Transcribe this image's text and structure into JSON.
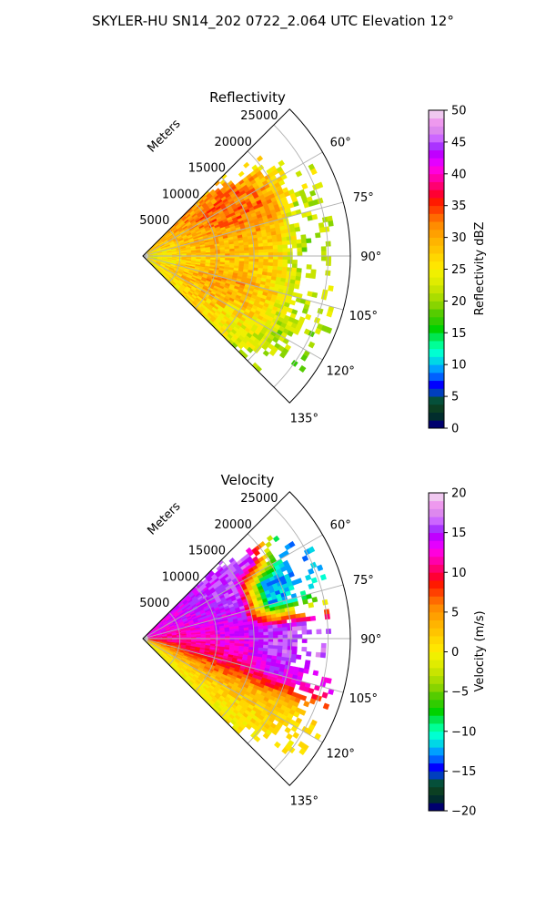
{
  "figure": {
    "suptitle": "SKYLER-HU  SN14_202  0722_2.064 UTC Elevation 12°"
  },
  "chart_data": [
    {
      "type": "heatmap",
      "projection": "polar-sector",
      "title": "Reflectivity",
      "range_label": "Meters",
      "range_ticks": [
        5000,
        10000,
        15000,
        20000,
        25000
      ],
      "range_tick_labels": [
        "5000",
        "10000",
        "15000",
        "20000",
        "25000"
      ],
      "rlim": [
        0,
        28000
      ],
      "theta_range_deg": [
        45,
        135
      ],
      "theta_ticks_deg": [
        60,
        75,
        90,
        105,
        120,
        135
      ],
      "theta_tick_labels": [
        "60°",
        "75°",
        "90°",
        "105°",
        "120°",
        "135°"
      ],
      "grid": true,
      "colorbar": {
        "label": "Reflectivity dBZ",
        "vmin": 0,
        "vmax": 50,
        "ticks": [
          0,
          5,
          10,
          15,
          20,
          25,
          30,
          35,
          40,
          45,
          50
        ],
        "tick_labels": [
          "0",
          "5",
          "10",
          "15",
          "20",
          "25",
          "30",
          "35",
          "40",
          "45",
          "50"
        ],
        "colors": [
          "#00006e",
          "#012d2d",
          "#0b3f22",
          "#05503a",
          "#003fbe",
          "#0000ff",
          "#0060ff",
          "#00a0ff",
          "#00d7e6",
          "#00ffd2",
          "#00ff96",
          "#00e650",
          "#00d200",
          "#30cc00",
          "#55cc00",
          "#88d400",
          "#aadd00",
          "#c8e400",
          "#e0ec00",
          "#f0f000",
          "#ffe600",
          "#ffd700",
          "#ffc400",
          "#ffb400",
          "#ffa000",
          "#ff8c00",
          "#ff6a00",
          "#ff4000",
          "#ff1a00",
          "#ff0033",
          "#ff0070",
          "#ff00aa",
          "#ff00dd",
          "#e400ff",
          "#c000ff",
          "#aa33ff",
          "#cc66ff",
          "#dd88ee",
          "#ee99ee",
          "#f0c8f0"
        ]
      },
      "field_profile": {
        "azimuth_deg": [
          45,
          55,
          65,
          75,
          85,
          95,
          105,
          115,
          125,
          135
        ],
        "range_m": [
          2000,
          6000,
          10000,
          14000,
          18000,
          22000
        ],
        "dbz": [
          [
            30,
            28,
            27,
            26,
            25,
            24,
            25,
            26,
            25,
            24
          ],
          [
            31,
            30,
            29,
            28,
            28,
            27,
            28,
            29,
            27,
            26
          ],
          [
            30,
            33,
            32,
            30,
            29,
            28,
            31,
            30,
            28,
            27
          ],
          [
            29,
            34,
            33,
            31,
            29,
            28,
            30,
            29,
            26,
            24
          ],
          [
            26,
            30,
            33,
            30,
            27,
            26,
            27,
            26,
            24,
            22
          ],
          [
            22,
            24,
            23,
            22,
            21,
            21,
            22,
            21,
            20,
            20
          ]
        ],
        "echo_edge_m_by_azimuth": [
          12000,
          20000,
          22000,
          21500,
          21000,
          21000,
          22000,
          23000,
          22000,
          17000
        ]
      }
    },
    {
      "type": "heatmap",
      "projection": "polar-sector",
      "title": "Velocity",
      "range_label": "Meters",
      "range_ticks": [
        5000,
        10000,
        15000,
        20000,
        25000
      ],
      "range_tick_labels": [
        "5000",
        "10000",
        "15000",
        "20000",
        "25000"
      ],
      "rlim": [
        0,
        28000
      ],
      "theta_range_deg": [
        45,
        135
      ],
      "theta_ticks_deg": [
        60,
        75,
        90,
        105,
        120,
        135
      ],
      "theta_tick_labels": [
        "60°",
        "75°",
        "90°",
        "105°",
        "120°",
        "135°"
      ],
      "grid": true,
      "colorbar": {
        "label": "Velocity (m/s)",
        "vmin": -20,
        "vmax": 20,
        "ticks": [
          -20,
          -15,
          -10,
          -5,
          0,
          5,
          10,
          15,
          20
        ],
        "tick_labels": [
          "−20",
          "−15",
          "−10",
          "−5",
          "0",
          "5",
          "10",
          "15",
          "20"
        ],
        "colors": [
          "#00006e",
          "#012d2d",
          "#0b3f22",
          "#05503a",
          "#003fbe",
          "#0000ff",
          "#0060ff",
          "#00a0ff",
          "#00d7e6",
          "#00ffd2",
          "#00ff96",
          "#00e650",
          "#00d200",
          "#30cc00",
          "#55cc00",
          "#88d400",
          "#aadd00",
          "#c8e400",
          "#e0ec00",
          "#f0f000",
          "#ffe600",
          "#ffd700",
          "#ffc400",
          "#ffb400",
          "#ffa000",
          "#ff8c00",
          "#ff6a00",
          "#ff4000",
          "#ff1a00",
          "#ff0033",
          "#ff0070",
          "#ff00aa",
          "#ff00dd",
          "#e400ff",
          "#c000ff",
          "#aa33ff",
          "#cc66ff",
          "#dd88ee",
          "#ee99ee",
          "#f0c8f0"
        ]
      },
      "field_profile": {
        "azimuth_deg": [
          45,
          55,
          65,
          75,
          85,
          95,
          105,
          115,
          125,
          135
        ],
        "range_m": [
          2000,
          6000,
          10000,
          14000,
          18000,
          22000
        ],
        "velocity_ms": [
          [
            13,
            13,
            13,
            12,
            11,
            10,
            6,
            3,
            1,
            -2
          ],
          [
            14,
            14,
            14,
            13,
            12,
            11,
            9,
            4,
            1,
            0
          ],
          [
            15,
            15,
            15,
            14,
            13,
            12,
            10,
            5,
            1,
            0
          ],
          [
            15,
            16,
            16,
            15,
            14,
            13,
            11,
            4,
            1,
            0
          ],
          [
            16,
            16,
            -12,
            -13,
            16,
            16,
            14,
            3,
            1,
            0
          ],
          [
            16,
            -13,
            -12,
            -11,
            16,
            16,
            13,
            2,
            1,
            0
          ]
        ],
        "echo_edge_m_by_azimuth": [
          12000,
          20000,
          22000,
          21500,
          21000,
          21000,
          22000,
          23000,
          22000,
          17000
        ]
      }
    }
  ]
}
